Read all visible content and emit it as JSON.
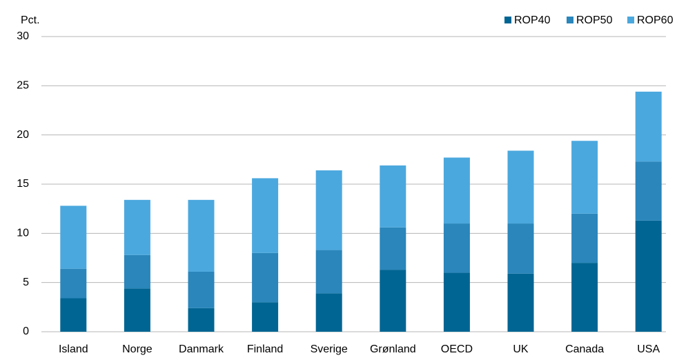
{
  "chart_data": {
    "type": "stacked_bar",
    "y_axis_label": "Pct.",
    "categories": [
      "Island",
      "Norge",
      "Danmark",
      "Finland",
      "Sverige",
      "Grønland",
      "OECD",
      "UK",
      "Canada",
      "USA"
    ],
    "series": [
      {
        "name": "ROP40",
        "color": "#006593",
        "values": [
          3.4,
          4.4,
          2.4,
          3.0,
          3.9,
          6.3,
          6.0,
          5.9,
          7.0,
          11.3
        ]
      },
      {
        "name": "ROP50",
        "color": "#2a86bb",
        "values": [
          3.0,
          3.4,
          3.7,
          5.0,
          4.4,
          4.3,
          5.0,
          5.1,
          5.0,
          6.0
        ]
      },
      {
        "name": "ROP60",
        "color": "#4ba8de",
        "values": [
          6.4,
          5.6,
          7.3,
          7.6,
          8.1,
          6.3,
          6.7,
          7.4,
          7.4,
          7.1
        ]
      }
    ],
    "ylim": [
      0,
      30
    ],
    "yticks": [
      0,
      5,
      10,
      15,
      20,
      25,
      30
    ],
    "grid": true,
    "legend": "top-right"
  }
}
